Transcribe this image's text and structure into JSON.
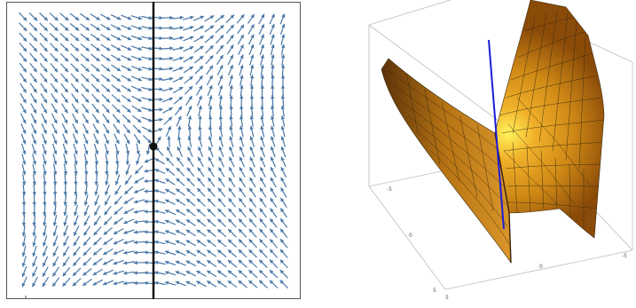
{
  "stream_plot": {
    "arrow_color": "#4a78a6",
    "axis_color": "#000000",
    "frame_color": "#555555",
    "critical_point": {
      "x": 0,
      "y": 0
    }
  },
  "surface_plot": {
    "surface_color": "#d08a16",
    "highlight_color": "#fff25a",
    "mesh_color": "#3a2a10",
    "line_color": "#1c1cd8",
    "box_color": "#bdbdbd",
    "tick_labels": {
      "left_upper": "-5",
      "left_lower": "0",
      "bottom_left": "5",
      "bottom_left_2": "5",
      "bottom_right": "-5",
      "bottom_mid": "0"
    }
  }
}
